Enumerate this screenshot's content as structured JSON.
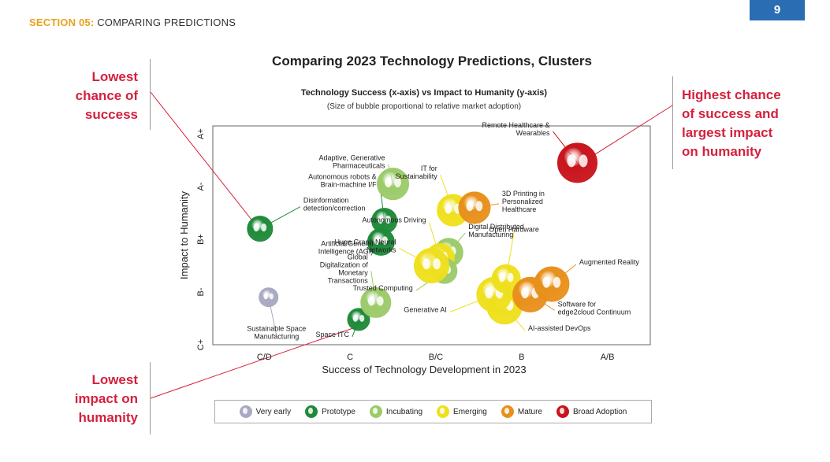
{
  "header": {
    "section_label": "SECTION 05:",
    "section_title": "COMPARING PREDICTIONS",
    "page_number": "9"
  },
  "callouts": {
    "top_left": [
      "Lowest",
      "chance of",
      "success"
    ],
    "bottom_left": [
      "Lowest",
      "impact on",
      "humanity"
    ],
    "top_right": [
      "Highest chance",
      "of success and",
      "largest impact",
      "on humanity"
    ]
  },
  "chart_data": {
    "type": "scatter",
    "title": "Comparing 2023 Technology Predictions, Clusters",
    "subtitle": "Technology Success (x-axis) vs Impact to Humanity (y-axis)",
    "note": "(Size of bubble proportional to relative market adoption)",
    "xlabel": "Success of Technology Development in 2023",
    "ylabel": "Impact to Humanity",
    "x_ticks": [
      "C/D",
      "C",
      "B/C",
      "B",
      "A/B"
    ],
    "y_ticks": [
      "C+",
      "B-",
      "B+",
      "A-",
      "A+"
    ],
    "xlim": [
      -0.6,
      4.5
    ],
    "ylim": [
      0,
      4.15
    ],
    "grid": false,
    "legend_position": "bottom",
    "categories": [
      {
        "name": "Very early",
        "color": "#a9a9c2"
      },
      {
        "name": "Prototype",
        "color": "#1f8a3a"
      },
      {
        "name": "Incubating",
        "color": "#9ccb6a"
      },
      {
        "name": "Emerging",
        "color": "#efe01e"
      },
      {
        "name": "Mature",
        "color": "#e8901c"
      },
      {
        "name": "Broad Adoption",
        "color": "#c9141c"
      }
    ],
    "points": [
      {
        "label": "Disinformation detection/correction",
        "x": -0.05,
        "y": 2.2,
        "r": 16,
        "category": "Prototype"
      },
      {
        "label": "Autonomous robots & Brain-machine I/F",
        "x": 1.4,
        "y": 2.35,
        "r": 16,
        "category": "Prototype"
      },
      {
        "label": "Artificial General Intelligence (AGI)",
        "x": 1.36,
        "y": 1.95,
        "r": 17,
        "category": "Prototype"
      },
      {
        "label": "Space ITC",
        "x": 1.1,
        "y": 0.48,
        "r": 14,
        "category": "Prototype"
      },
      {
        "label": "Adaptive, Generative Pharmaceuticals",
        "x": 1.5,
        "y": 3.05,
        "r": 20,
        "category": "Incubating"
      },
      {
        "label": "Global Digitalization of Monetary Transactions",
        "x": 1.3,
        "y": 0.8,
        "r": 19,
        "category": "Incubating"
      },
      {
        "label": "Sustainable Space Manufacturing",
        "x": 0.05,
        "y": 0.9,
        "r": 12,
        "category": "Very early"
      },
      {
        "label": "IT for Sustainability",
        "x": 2.2,
        "y": 2.55,
        "r": 20,
        "category": "Emerging"
      },
      {
        "label": "3D Printing in Personalized Healthcare",
        "x": 2.45,
        "y": 2.6,
        "r": 20,
        "category": "Mature"
      },
      {
        "label": "Remote Healthcare & Wearables",
        "x": 3.65,
        "y": 3.45,
        "r": 25,
        "category": "Broad Adoption"
      },
      {
        "label": "Digital Distributed Manufacturing",
        "x": 2.15,
        "y": 1.75,
        "r": 18,
        "category": "Incubating"
      },
      {
        "label": "Autonomous Driving",
        "x": 2.05,
        "y": 1.65,
        "r": 18,
        "category": "Emerging"
      },
      {
        "label": "Trusted Computing",
        "x": 2.1,
        "y": 1.4,
        "r": 16,
        "category": "Incubating"
      },
      {
        "label": "Huge Graph Neural Networks",
        "x": 1.95,
        "y": 1.5,
        "r": 22,
        "category": "Emerging"
      },
      {
        "label": "AI-assisted DevOps",
        "x": 2.8,
        "y": 0.72,
        "r": 22,
        "category": "Emerging"
      },
      {
        "label": "Generative AI",
        "x": 2.68,
        "y": 0.95,
        "r": 22,
        "category": "Emerging"
      },
      {
        "label": "Open Hardware",
        "x": 2.82,
        "y": 1.25,
        "r": 18,
        "category": "Emerging"
      },
      {
        "label": "Software for edge2cloud Continuum",
        "x": 3.1,
        "y": 0.95,
        "r": 22,
        "category": "Mature"
      },
      {
        "label": "Augmented Reality",
        "x": 3.35,
        "y": 1.15,
        "r": 22,
        "category": "Mature"
      }
    ]
  }
}
